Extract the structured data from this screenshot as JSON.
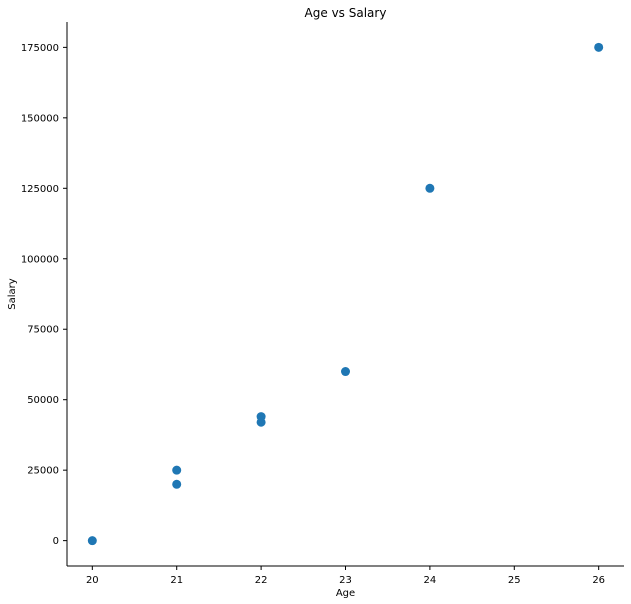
{
  "chart_data": {
    "type": "scatter",
    "title": "Age vs Salary",
    "xlabel": "Age",
    "ylabel": "Salary",
    "x": [
      20,
      21,
      21,
      22,
      22,
      23,
      24,
      26
    ],
    "y": [
      0,
      20000,
      25000,
      42000,
      44000,
      60000,
      125000,
      175000
    ],
    "xlim": [
      19.7,
      26.3
    ],
    "ylim": [
      -9000,
      184000
    ],
    "xticks": [
      20,
      21,
      22,
      23,
      24,
      25,
      26
    ],
    "xtick_labels": [
      "20",
      "21",
      "22",
      "23",
      "24",
      "25",
      "26"
    ],
    "yticks": [
      0,
      25000,
      50000,
      75000,
      100000,
      125000,
      150000,
      175000
    ],
    "ytick_labels": [
      "0",
      "25000",
      "50000",
      "75000",
      "100000",
      "125000",
      "150000",
      "175000"
    ],
    "grid": false,
    "marker_color": "#1f77b4",
    "axis_color": "#000000"
  }
}
